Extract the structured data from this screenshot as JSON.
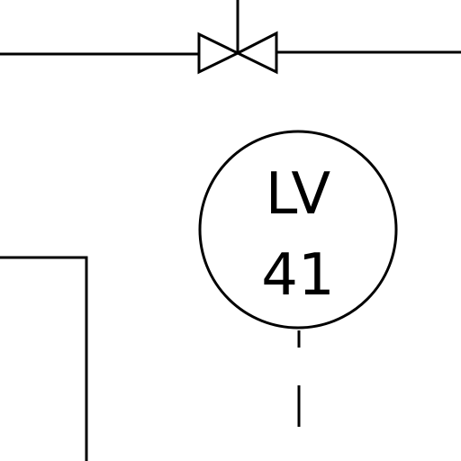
{
  "diagram": {
    "instrument": {
      "tag_line1": "LV",
      "tag_line2": "41"
    },
    "symbols": {
      "valve_icon": "gate-valve-icon",
      "instrument_icon": "instrument-bubble-icon"
    },
    "colors": {
      "ink": "#000000",
      "background": "#ffffff"
    }
  }
}
